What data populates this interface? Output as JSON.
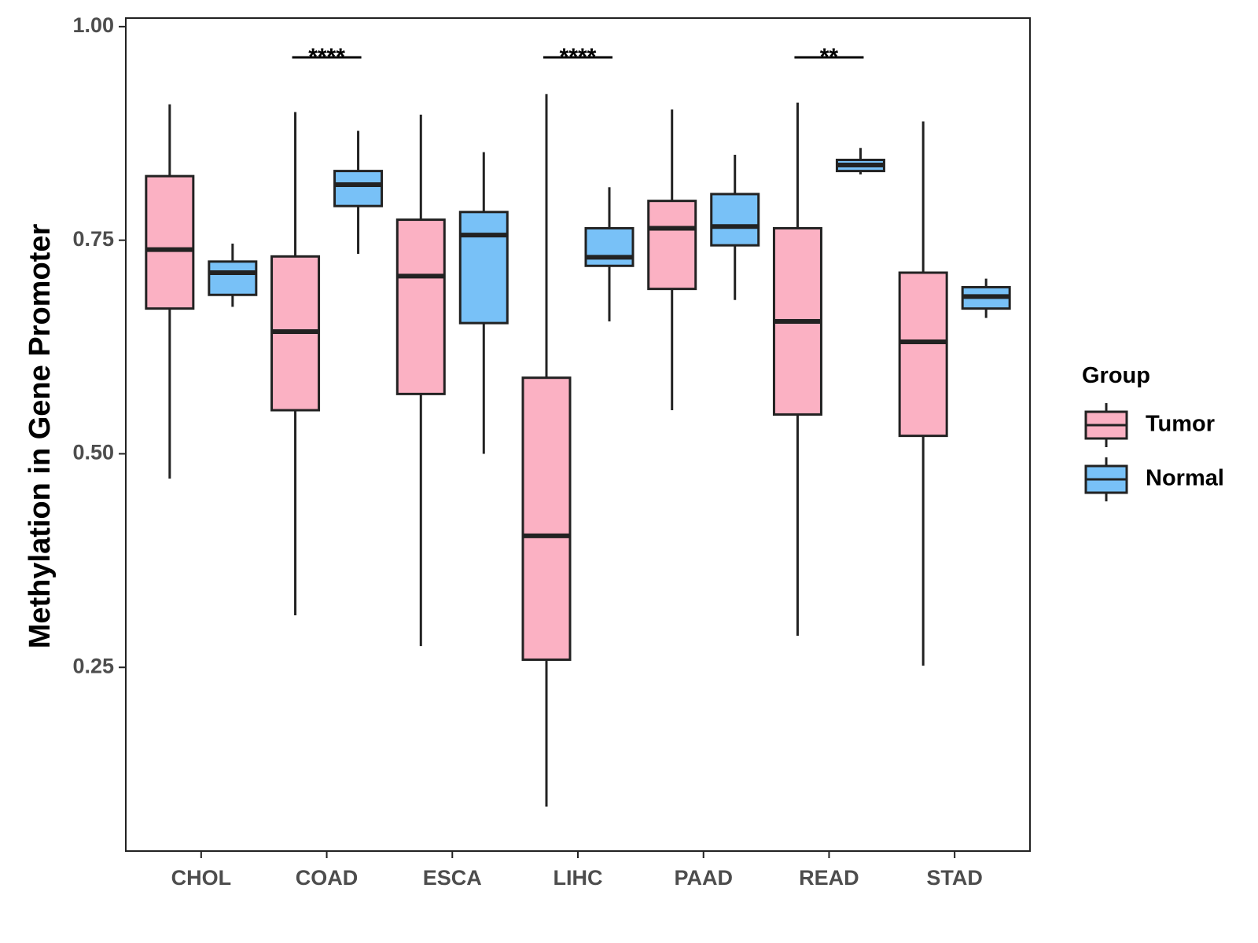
{
  "chart_data": {
    "type": "boxplot",
    "title": "",
    "xlabel": "",
    "ylabel": "Methylation in Gene Promoter",
    "ylim": [
      0.035,
      1.01
    ],
    "yticks": [
      0.25,
      0.5,
      0.75,
      1.0
    ],
    "ytick_labels": [
      "0.25",
      "0.50",
      "0.75",
      "1.00"
    ],
    "categories": [
      "CHOL",
      "COAD",
      "ESCA",
      "LIHC",
      "PAAD",
      "READ",
      "STAD"
    ],
    "legend": {
      "title": "Group",
      "position": "right",
      "entries": [
        {
          "name": "Tumor",
          "color": "#FBB1C3"
        },
        {
          "name": "Normal",
          "color": "#78C1F7"
        }
      ]
    },
    "series": [
      {
        "name": "Tumor",
        "color": "#FBB1C3",
        "boxes": [
          {
            "category": "CHOL",
            "min": 0.471,
            "q1": 0.67,
            "median": 0.739,
            "q3": 0.825,
            "max": 0.909
          },
          {
            "category": "COAD",
            "min": 0.311,
            "q1": 0.551,
            "median": 0.643,
            "q3": 0.731,
            "max": 0.9
          },
          {
            "category": "ESCA",
            "min": 0.275,
            "q1": 0.57,
            "median": 0.708,
            "q3": 0.774,
            "max": 0.897
          },
          {
            "category": "LIHC",
            "min": 0.087,
            "q1": 0.259,
            "median": 0.404,
            "q3": 0.589,
            "max": 0.921
          },
          {
            "category": "PAAD",
            "min": 0.551,
            "q1": 0.693,
            "median": 0.764,
            "q3": 0.796,
            "max": 0.903
          },
          {
            "category": "READ",
            "min": 0.287,
            "q1": 0.546,
            "median": 0.655,
            "q3": 0.764,
            "max": 0.911
          },
          {
            "category": "STAD",
            "min": 0.252,
            "q1": 0.521,
            "median": 0.631,
            "q3": 0.712,
            "max": 0.889
          }
        ]
      },
      {
        "name": "Normal",
        "color": "#78C1F7",
        "boxes": [
          {
            "category": "CHOL",
            "min": 0.672,
            "q1": 0.686,
            "median": 0.712,
            "q3": 0.725,
            "max": 0.746
          },
          {
            "category": "COAD",
            "min": 0.734,
            "q1": 0.79,
            "median": 0.815,
            "q3": 0.831,
            "max": 0.878
          },
          {
            "category": "ESCA",
            "min": 0.5,
            "q1": 0.653,
            "median": 0.756,
            "q3": 0.783,
            "max": 0.853
          },
          {
            "category": "LIHC",
            "min": 0.655,
            "q1": 0.72,
            "median": 0.73,
            "q3": 0.764,
            "max": 0.812
          },
          {
            "category": "PAAD",
            "min": 0.68,
            "q1": 0.744,
            "median": 0.766,
            "q3": 0.804,
            "max": 0.85
          },
          {
            "category": "READ",
            "min": 0.827,
            "q1": 0.831,
            "median": 0.838,
            "q3": 0.844,
            "max": 0.858
          },
          {
            "category": "STAD",
            "min": 0.659,
            "q1": 0.67,
            "median": 0.684,
            "q3": 0.695,
            "max": 0.705
          }
        ]
      }
    ],
    "annotations": [
      {
        "category": "COAD",
        "label": "****",
        "y": 0.964
      },
      {
        "category": "LIHC",
        "label": "****",
        "y": 0.964
      },
      {
        "category": "READ",
        "label": "**",
        "y": 0.964
      }
    ]
  }
}
